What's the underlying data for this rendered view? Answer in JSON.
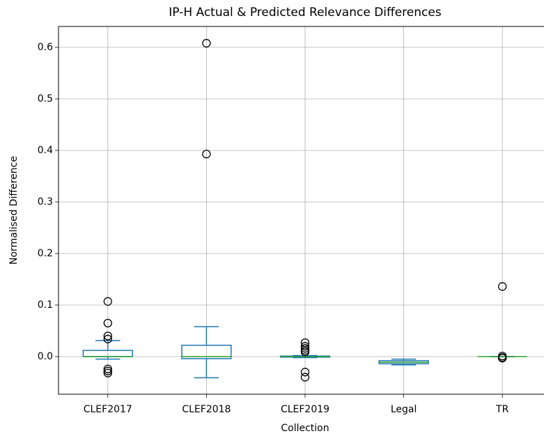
{
  "chart_data": {
    "type": "box",
    "title": "IP-H Actual & Predicted Relevance Differences",
    "xlabel": "Collection",
    "ylabel": "Normalised Difference",
    "categories": [
      "CLEF2017",
      "CLEF2018",
      "CLEF2019",
      "Legal",
      "TR"
    ],
    "boxes": [
      {
        "whislo": -0.005,
        "q1": 0.0,
        "median": 0.0,
        "q3": 0.012,
        "whishi": 0.031,
        "fliers": [
          0.107,
          0.065,
          0.04,
          0.034,
          -0.024,
          -0.028,
          -0.032
        ]
      },
      {
        "whislo": -0.041,
        "q1": -0.004,
        "median": 0.0,
        "q3": 0.022,
        "whishi": 0.058,
        "fliers": [
          0.608,
          0.393
        ]
      },
      {
        "whislo": -0.002,
        "q1": -0.001,
        "median": 0.0,
        "q3": 0.001,
        "whishi": 0.002,
        "fliers": [
          0.027,
          0.02,
          0.016,
          0.012,
          0.009,
          -0.03,
          -0.04
        ]
      },
      {
        "whislo": -0.016,
        "q1": -0.014,
        "median": -0.011,
        "q3": -0.008,
        "whishi": -0.005,
        "fliers": []
      },
      {
        "whislo": 0.0,
        "q1": 0.0,
        "median": 0.0,
        "q3": 0.0,
        "whishi": 0.0,
        "fliers": [
          0.136,
          0.001,
          -0.002,
          -0.003
        ]
      }
    ],
    "box_color": "#1f77b4",
    "median_color": "#2ca02c",
    "flier_color": "#000000",
    "ylim": [
      -0.073,
      0.6405
    ],
    "yticks": [
      {
        "value": 0,
        "label": "0.0"
      },
      0.1,
      0.2,
      0.3,
      0.4,
      0.5,
      0.6
    ],
    "grid": true
  }
}
